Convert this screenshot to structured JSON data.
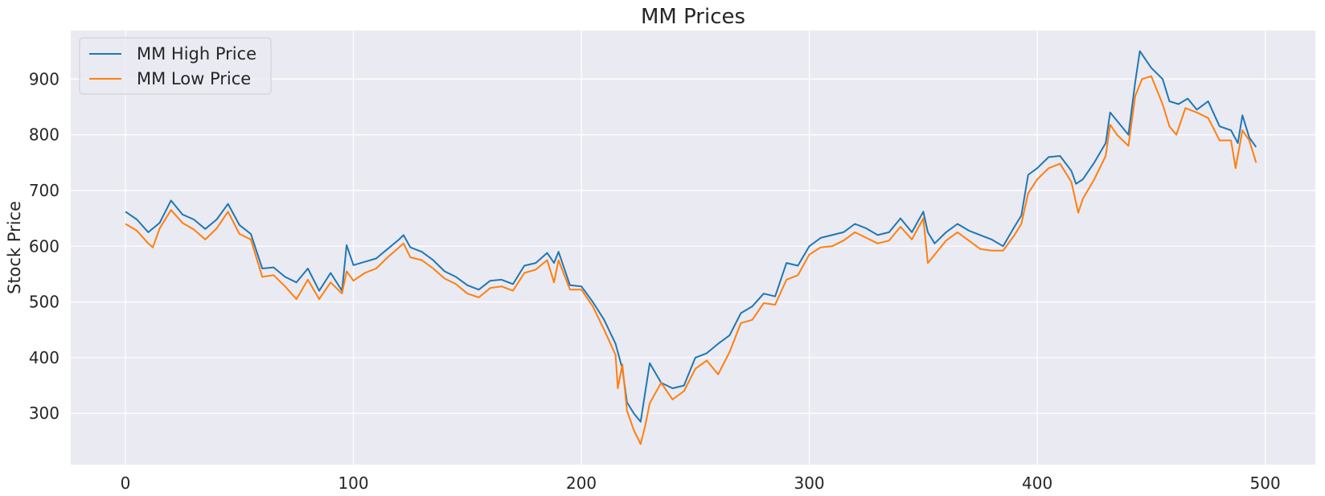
{
  "chart_data": {
    "type": "line",
    "title": "MM Prices",
    "xlabel": "",
    "ylabel": "Stock Price",
    "xlim": [
      -24,
      522
    ],
    "ylim": [
      208,
      987
    ],
    "xticks": [
      0,
      100,
      200,
      300,
      400,
      500
    ],
    "yticks": [
      300,
      400,
      500,
      600,
      700,
      800,
      900
    ],
    "grid": true,
    "legend_position": "top-left",
    "background_color": "#eaeaf2",
    "grid_color": "#ffffff",
    "series": [
      {
        "name": "MM High Price",
        "color": "#1f77b4",
        "points": [
          [
            0,
            662
          ],
          [
            5,
            648
          ],
          [
            10,
            625
          ],
          [
            15,
            642
          ],
          [
            20,
            682
          ],
          [
            25,
            657
          ],
          [
            30,
            648
          ],
          [
            35,
            631
          ],
          [
            40,
            648
          ],
          [
            45,
            676
          ],
          [
            50,
            638
          ],
          [
            55,
            622
          ],
          [
            60,
            560
          ],
          [
            65,
            562
          ],
          [
            70,
            545
          ],
          [
            75,
            535
          ],
          [
            80,
            560
          ],
          [
            85,
            520
          ],
          [
            90,
            552
          ],
          [
            95,
            520
          ],
          [
            97,
            602
          ],
          [
            100,
            566
          ],
          [
            105,
            572
          ],
          [
            110,
            578
          ],
          [
            115,
            595
          ],
          [
            120,
            612
          ],
          [
            122,
            620
          ],
          [
            125,
            598
          ],
          [
            130,
            590
          ],
          [
            135,
            575
          ],
          [
            140,
            555
          ],
          [
            145,
            545
          ],
          [
            150,
            530
          ],
          [
            155,
            522
          ],
          [
            160,
            538
          ],
          [
            165,
            540
          ],
          [
            170,
            532
          ],
          [
            175,
            565
          ],
          [
            180,
            570
          ],
          [
            185,
            588
          ],
          [
            188,
            570
          ],
          [
            190,
            590
          ],
          [
            195,
            530
          ],
          [
            200,
            528
          ],
          [
            205,
            500
          ],
          [
            210,
            468
          ],
          [
            215,
            425
          ],
          [
            218,
            380
          ],
          [
            220,
            320
          ],
          [
            223,
            300
          ],
          [
            226,
            285
          ],
          [
            230,
            390
          ],
          [
            235,
            355
          ],
          [
            240,
            345
          ],
          [
            245,
            350
          ],
          [
            250,
            400
          ],
          [
            255,
            408
          ],
          [
            260,
            425
          ],
          [
            265,
            440
          ],
          [
            270,
            480
          ],
          [
            275,
            492
          ],
          [
            280,
            515
          ],
          [
            285,
            510
          ],
          [
            290,
            570
          ],
          [
            295,
            565
          ],
          [
            300,
            600
          ],
          [
            305,
            615
          ],
          [
            310,
            620
          ],
          [
            315,
            625
          ],
          [
            320,
            640
          ],
          [
            325,
            632
          ],
          [
            330,
            620
          ],
          [
            335,
            625
          ],
          [
            340,
            650
          ],
          [
            345,
            625
          ],
          [
            350,
            662
          ],
          [
            352,
            625
          ],
          [
            355,
            605
          ],
          [
            360,
            625
          ],
          [
            365,
            640
          ],
          [
            370,
            628
          ],
          [
            375,
            620
          ],
          [
            380,
            612
          ],
          [
            385,
            600
          ],
          [
            390,
            635
          ],
          [
            393,
            655
          ],
          [
            396,
            728
          ],
          [
            400,
            740
          ],
          [
            405,
            760
          ],
          [
            410,
            762
          ],
          [
            415,
            735
          ],
          [
            417,
            712
          ],
          [
            420,
            720
          ],
          [
            425,
            750
          ],
          [
            430,
            785
          ],
          [
            432,
            840
          ],
          [
            435,
            825
          ],
          [
            440,
            800
          ],
          [
            443,
            895
          ],
          [
            445,
            950
          ],
          [
            450,
            920
          ],
          [
            455,
            900
          ],
          [
            458,
            860
          ],
          [
            462,
            855
          ],
          [
            466,
            865
          ],
          [
            470,
            845
          ],
          [
            475,
            860
          ],
          [
            480,
            815
          ],
          [
            485,
            808
          ],
          [
            488,
            785
          ],
          [
            490,
            835
          ],
          [
            493,
            795
          ],
          [
            496,
            778
          ]
        ]
      },
      {
        "name": "MM Low Price",
        "color": "#ff7f0e",
        "points": [
          [
            0,
            640
          ],
          [
            5,
            628
          ],
          [
            10,
            605
          ],
          [
            12,
            598
          ],
          [
            15,
            632
          ],
          [
            20,
            665
          ],
          [
            25,
            642
          ],
          [
            30,
            630
          ],
          [
            35,
            612
          ],
          [
            40,
            632
          ],
          [
            45,
            662
          ],
          [
            50,
            622
          ],
          [
            55,
            612
          ],
          [
            60,
            545
          ],
          [
            65,
            548
          ],
          [
            70,
            528
          ],
          [
            75,
            505
          ],
          [
            80,
            540
          ],
          [
            85,
            505
          ],
          [
            90,
            535
          ],
          [
            95,
            515
          ],
          [
            97,
            555
          ],
          [
            100,
            538
          ],
          [
            105,
            552
          ],
          [
            110,
            560
          ],
          [
            115,
            580
          ],
          [
            120,
            598
          ],
          [
            122,
            605
          ],
          [
            125,
            580
          ],
          [
            130,
            575
          ],
          [
            135,
            560
          ],
          [
            140,
            542
          ],
          [
            145,
            532
          ],
          [
            150,
            515
          ],
          [
            155,
            508
          ],
          [
            160,
            525
          ],
          [
            165,
            528
          ],
          [
            170,
            520
          ],
          [
            175,
            552
          ],
          [
            180,
            558
          ],
          [
            185,
            575
          ],
          [
            188,
            535
          ],
          [
            190,
            575
          ],
          [
            195,
            522
          ],
          [
            200,
            522
          ],
          [
            205,
            492
          ],
          [
            210,
            450
          ],
          [
            215,
            405
          ],
          [
            216,
            345
          ],
          [
            218,
            388
          ],
          [
            220,
            305
          ],
          [
            223,
            270
          ],
          [
            226,
            245
          ],
          [
            228,
            278
          ],
          [
            230,
            318
          ],
          [
            235,
            355
          ],
          [
            240,
            325
          ],
          [
            245,
            340
          ],
          [
            250,
            380
          ],
          [
            255,
            395
          ],
          [
            260,
            370
          ],
          [
            265,
            410
          ],
          [
            270,
            462
          ],
          [
            275,
            468
          ],
          [
            280,
            498
          ],
          [
            285,
            495
          ],
          [
            290,
            540
          ],
          [
            295,
            548
          ],
          [
            300,
            585
          ],
          [
            305,
            598
          ],
          [
            310,
            600
          ],
          [
            315,
            610
          ],
          [
            320,
            625
          ],
          [
            325,
            615
          ],
          [
            330,
            605
          ],
          [
            335,
            610
          ],
          [
            340,
            635
          ],
          [
            345,
            612
          ],
          [
            350,
            650
          ],
          [
            352,
            570
          ],
          [
            355,
            585
          ],
          [
            360,
            610
          ],
          [
            365,
            625
          ],
          [
            370,
            610
          ],
          [
            375,
            595
          ],
          [
            380,
            592
          ],
          [
            385,
            592
          ],
          [
            390,
            620
          ],
          [
            393,
            640
          ],
          [
            396,
            695
          ],
          [
            400,
            720
          ],
          [
            405,
            740
          ],
          [
            410,
            748
          ],
          [
            415,
            715
          ],
          [
            418,
            660
          ],
          [
            420,
            685
          ],
          [
            425,
            720
          ],
          [
            430,
            762
          ],
          [
            432,
            818
          ],
          [
            435,
            800
          ],
          [
            440,
            780
          ],
          [
            443,
            870
          ],
          [
            446,
            900
          ],
          [
            450,
            905
          ],
          [
            455,
            855
          ],
          [
            458,
            815
          ],
          [
            461,
            800
          ],
          [
            465,
            848
          ],
          [
            470,
            840
          ],
          [
            475,
            830
          ],
          [
            480,
            790
          ],
          [
            485,
            790
          ],
          [
            487,
            740
          ],
          [
            490,
            808
          ],
          [
            493,
            790
          ],
          [
            496,
            750
          ]
        ]
      }
    ]
  }
}
